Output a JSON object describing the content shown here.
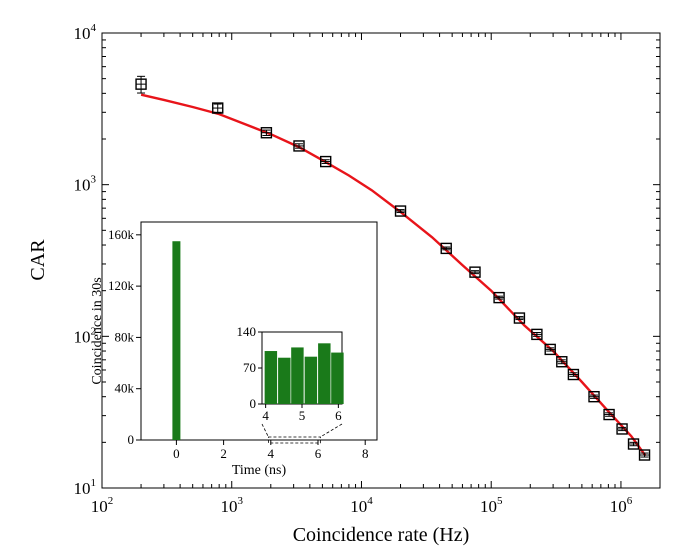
{
  "chart_data": [
    {
      "type": "scatter",
      "xlabel": "Coincidence rate (Hz)",
      "ylabel": "CAR",
      "xscale": "log",
      "yscale": "log",
      "xlim": [
        100,
        2000000
      ],
      "ylim": [
        10,
        10000
      ],
      "x_ticks": [
        {
          "value": 100,
          "base": "10",
          "exp": "2"
        },
        {
          "value": 1000,
          "base": "10",
          "exp": "3"
        },
        {
          "value": 10000,
          "base": "10",
          "exp": "4"
        },
        {
          "value": 100000,
          "base": "10",
          "exp": "5"
        },
        {
          "value": 1000000,
          "base": "10",
          "exp": "6"
        }
      ],
      "y_ticks": [
        {
          "value": 10,
          "base": "10",
          "exp": "1"
        },
        {
          "value": 100,
          "base": "10",
          "exp": "2"
        },
        {
          "value": 1000,
          "base": "10",
          "exp": "3"
        },
        {
          "value": 10000,
          "base": "10",
          "exp": "4"
        }
      ],
      "series": [
        {
          "kind": "markers",
          "marker": "open-square",
          "color": "#000000",
          "x": [
            200,
            780,
            1850,
            3300,
            5300,
            20000,
            45000,
            75000,
            115000,
            165000,
            225000,
            285000,
            350000,
            430000,
            620000,
            810000,
            1020000,
            1250000,
            1520000
          ],
          "y": [
            4600,
            3200,
            2200,
            1800,
            1420,
            670,
            380,
            265,
            180,
            132,
            103,
            82,
            68,
            56,
            40,
            30.5,
            24.5,
            19.5,
            16.5
          ],
          "err": [
            580,
            200,
            90,
            60,
            40,
            15,
            8,
            6,
            4,
            3,
            3,
            2,
            2,
            1.5,
            1,
            0.8,
            0.6,
            0.5,
            0.5
          ]
        },
        {
          "kind": "fit-line",
          "color": "#e8141a",
          "x": [
            200,
            300,
            500,
            800,
            1300,
            2000,
            3300,
            5000,
            8000,
            12000,
            20000,
            35000,
            60000,
            100000,
            180000,
            300000,
            500000,
            800000,
            1200000,
            1550000
          ],
          "y": [
            3920,
            3620,
            3250,
            2920,
            2480,
            2150,
            1770,
            1450,
            1150,
            920,
            660,
            450,
            295,
            200,
            118,
            80,
            50,
            32,
            22,
            16.3
          ]
        }
      ]
    },
    {
      "type": "bar",
      "xlabel": "Time (ns)",
      "ylabel": "Coincidence in 30s",
      "xlim": [
        -1.5,
        8.5
      ],
      "ylim": [
        0,
        170000
      ],
      "x_ticks": [
        "0",
        "2",
        "4",
        "6",
        "8"
      ],
      "y_ticks": [
        "0",
        "40k",
        "80k",
        "120k",
        "160k"
      ],
      "bar_color": "#1a7a1a",
      "x": [
        0
      ],
      "values": [
        155000
      ]
    },
    {
      "type": "bar",
      "xlabel": "",
      "ylabel": "",
      "xlim": [
        3.9,
        6.1
      ],
      "ylim": [
        0,
        140
      ],
      "x_ticks": [
        "4",
        "5",
        "6"
      ],
      "y_ticks": [
        "0",
        "70",
        "140"
      ],
      "bar_color": "#1a7a1a",
      "zoom_of_parent_range": [
        3.9,
        6.1
      ],
      "x": [
        4.0,
        4.37,
        4.73,
        5.1,
        5.47,
        5.83
      ],
      "values": [
        103,
        90,
        110,
        92,
        118,
        100
      ]
    }
  ]
}
